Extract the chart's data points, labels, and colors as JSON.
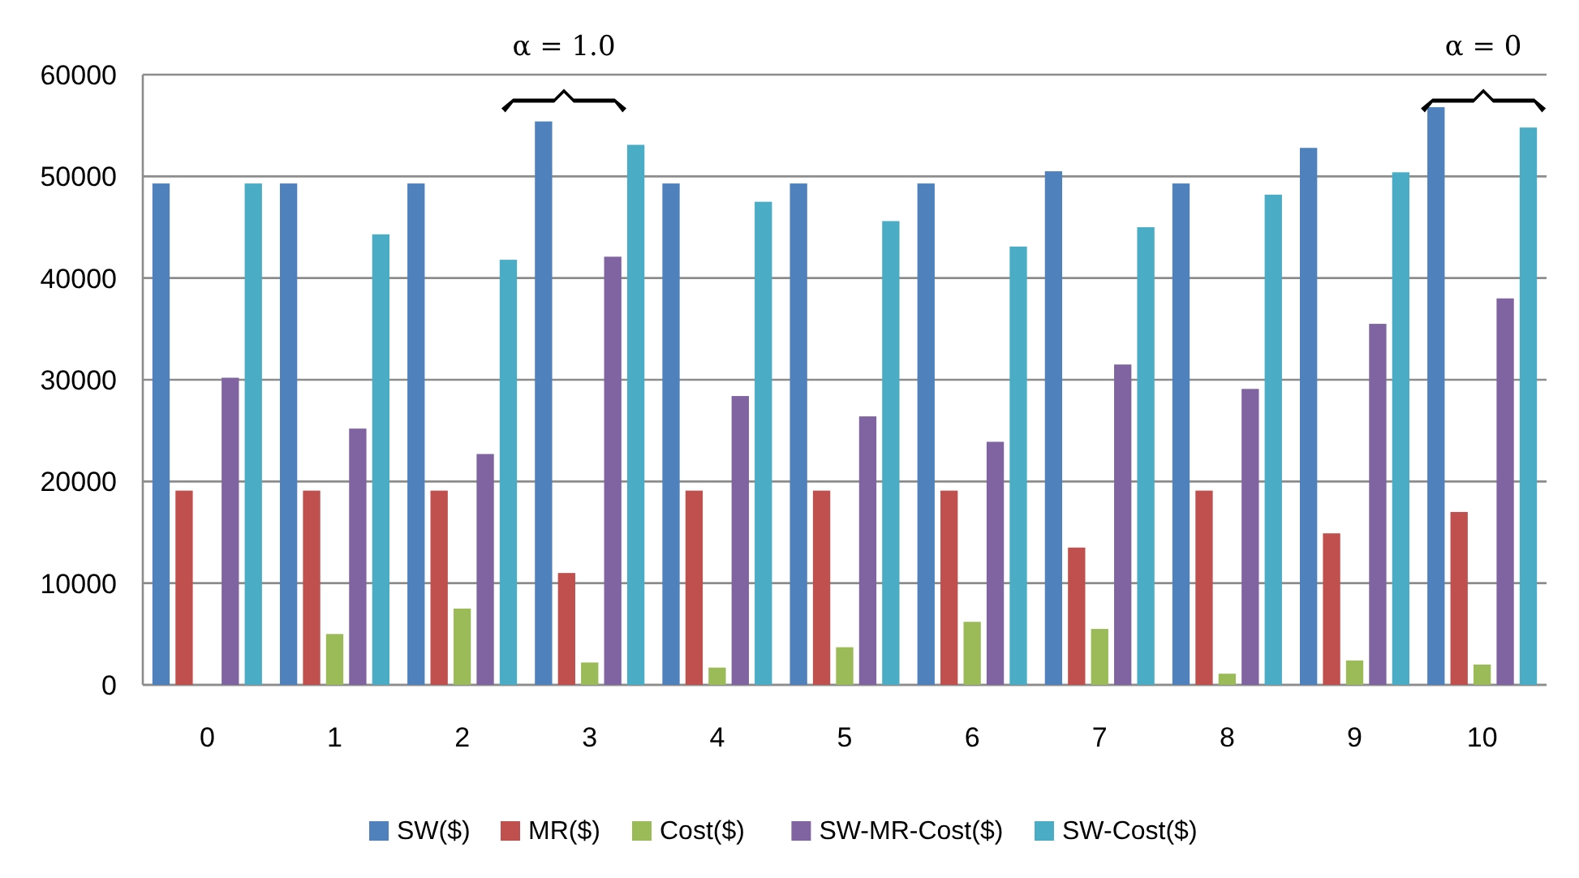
{
  "chart_data": {
    "type": "bar",
    "categories": [
      "0",
      "1",
      "2",
      "3",
      "4",
      "5",
      "6",
      "7",
      "8",
      "9",
      "10"
    ],
    "series": [
      {
        "name": "SW($)",
        "color": "#4f81bd",
        "values": [
          49300,
          49300,
          49300,
          55400,
          49300,
          49300,
          49300,
          50500,
          49300,
          52800,
          56800
        ]
      },
      {
        "name": "MR($)",
        "color": "#c0504d",
        "values": [
          19100,
          19100,
          19100,
          11000,
          19100,
          19100,
          19100,
          13500,
          19100,
          14900,
          17000
        ]
      },
      {
        "name": "Cost($)",
        "color": "#9bbb59",
        "values": [
          0,
          5000,
          7500,
          2200,
          1700,
          3700,
          6200,
          5500,
          1100,
          2400,
          2000
        ]
      },
      {
        "name": "SW-MR-Cost($)",
        "color": "#8064a2",
        "values": [
          30200,
          25200,
          22700,
          42100,
          28400,
          26400,
          23900,
          31500,
          29100,
          35500,
          38000
        ]
      },
      {
        "name": "SW-Cost($)",
        "color": "#4bacc6",
        "values": [
          49300,
          44300,
          41800,
          53100,
          47500,
          45600,
          43100,
          45000,
          48200,
          50400,
          54800
        ]
      }
    ],
    "ylim": [
      0,
      60000
    ],
    "yticks": [
      0,
      10000,
      20000,
      30000,
      40000,
      50000,
      60000
    ],
    "grid": "y",
    "legend": "bottom",
    "annotations": [
      "α = 1.0",
      "α = 0"
    ]
  }
}
